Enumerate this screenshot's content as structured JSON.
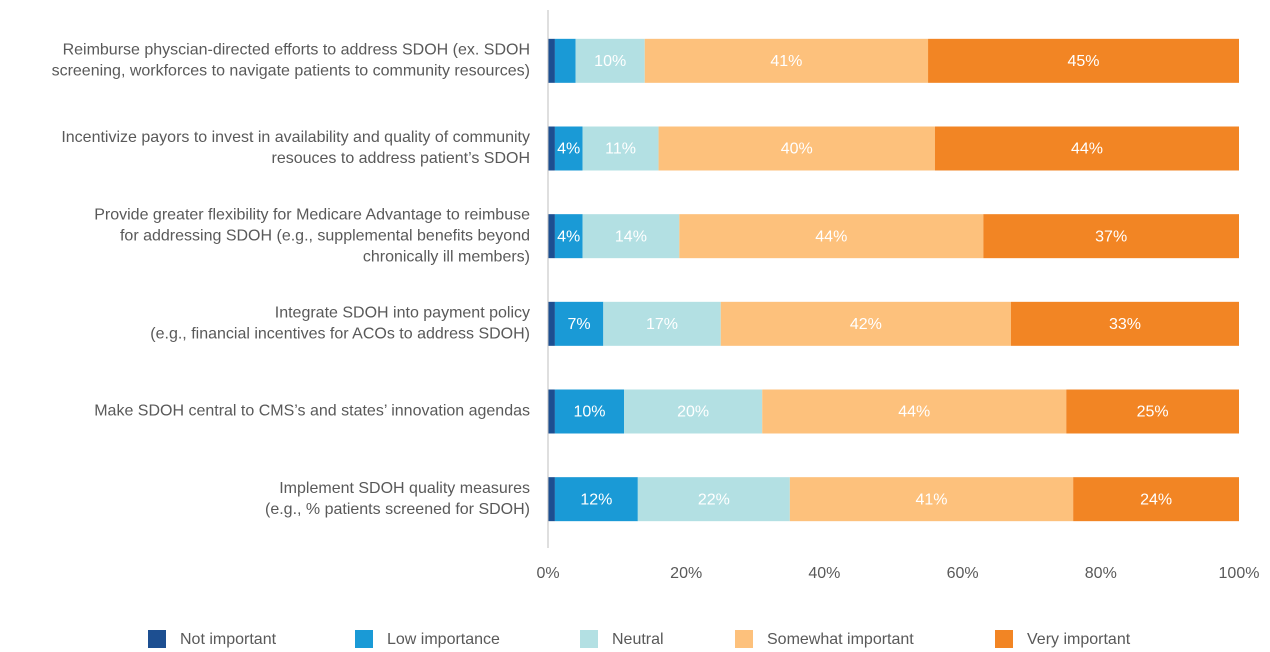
{
  "chart_data": {
    "type": "stacked_barh",
    "categories": [
      [
        "Reimburse physcian-directed efforts to address SDOH (ex. SDOH",
        "screening, workforces to navigate patients to community resources)"
      ],
      [
        "Incentivize payors to invest in availability and quality of community",
        "resouces to address patient’s SDOH"
      ],
      [
        "Provide greater flexibility for Medicare Advantage to reimbuse",
        "for addressing SDOH (e.g., supplemental benefits beyond",
        "chronically ill members)"
      ],
      [
        "Integrate SDOH into payment policy",
        "(e.g., financial incentives for ACOs to address SDOH)"
      ],
      [
        "Make SDOH central to CMS’s and states’ innovation agendas"
      ],
      [
        "Implement SDOH quality measures",
        "(e.g., % patients screened for SDOH)"
      ]
    ],
    "series": [
      {
        "name": "Not important",
        "color": "#1d4f91",
        "values": [
          1,
          1,
          1,
          1,
          1,
          1
        ],
        "value_labels": [
          null,
          null,
          null,
          null,
          null,
          null
        ]
      },
      {
        "name": "Low importance",
        "color": "#1a9ad6",
        "values": [
          3,
          4,
          4,
          7,
          10,
          12
        ],
        "value_labels": [
          null,
          "4%",
          "4%",
          "7%",
          "10%",
          "12%"
        ]
      },
      {
        "name": "Neutral",
        "color": "#b3e0e3",
        "values": [
          10,
          11,
          14,
          17,
          20,
          22
        ],
        "value_labels": [
          "10%",
          "11%",
          "14%",
          "17%",
          "20%",
          "22%"
        ]
      },
      {
        "name": "Somewhat important",
        "color": "#fdc17c",
        "values": [
          41,
          40,
          44,
          42,
          44,
          41
        ],
        "value_labels": [
          "41%",
          "40%",
          "44%",
          "42%",
          "44%",
          "41%"
        ]
      },
      {
        "name": "Very important",
        "color": "#f28524",
        "values": [
          45,
          44,
          37,
          33,
          25,
          24
        ],
        "value_labels": [
          "45%",
          "44%",
          "37%",
          "33%",
          "25%",
          "24%"
        ]
      }
    ],
    "xlim": [
      0,
      100
    ],
    "xticks": [
      {
        "value": 0,
        "label": "0%"
      },
      {
        "value": 20,
        "label": "20%"
      },
      {
        "value": 40,
        "label": "40%"
      },
      {
        "value": 60,
        "label": "60%"
      },
      {
        "value": 80,
        "label": "80%"
      },
      {
        "value": 100,
        "label": "100%"
      }
    ],
    "legend": "bottom"
  }
}
